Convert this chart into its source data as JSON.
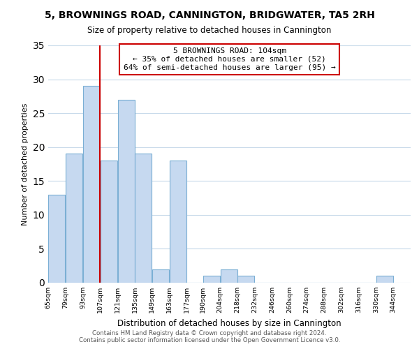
{
  "title": "5, BROWNINGS ROAD, CANNINGTON, BRIDGWATER, TA5 2RH",
  "subtitle": "Size of property relative to detached houses in Cannington",
  "xlabel": "Distribution of detached houses by size in Cannington",
  "ylabel": "Number of detached properties",
  "bar_left_edges": [
    65,
    79,
    93,
    107,
    121,
    135,
    149,
    163,
    177,
    190,
    204,
    218,
    232,
    246,
    260,
    274,
    288,
    302,
    316,
    330
  ],
  "bar_widths": [
    14,
    14,
    14,
    14,
    14,
    14,
    14,
    14,
    13,
    14,
    14,
    14,
    14,
    14,
    14,
    14,
    14,
    14,
    14,
    14
  ],
  "bar_heights": [
    13,
    19,
    29,
    18,
    27,
    19,
    2,
    18,
    0,
    1,
    2,
    1,
    0,
    0,
    0,
    0,
    0,
    0,
    0,
    1
  ],
  "bar_color": "#c6d9f0",
  "bar_edge_color": "#7bafd4",
  "tick_labels": [
    "65sqm",
    "79sqm",
    "93sqm",
    "107sqm",
    "121sqm",
    "135sqm",
    "149sqm",
    "163sqm",
    "177sqm",
    "190sqm",
    "204sqm",
    "218sqm",
    "232sqm",
    "246sqm",
    "260sqm",
    "274sqm",
    "288sqm",
    "302sqm",
    "316sqm",
    "330sqm",
    "344sqm"
  ],
  "property_line_x": 107,
  "property_line_color": "#cc0000",
  "annotation_text": "5 BROWNINGS ROAD: 104sqm\n← 35% of detached houses are smaller (52)\n64% of semi-detached houses are larger (95) →",
  "annotation_box_color": "#ffffff",
  "annotation_box_edge": "#cc0000",
  "ylim": [
    0,
    35
  ],
  "yticks": [
    0,
    5,
    10,
    15,
    20,
    25,
    30,
    35
  ],
  "xlim_min": 65,
  "xlim_max": 358,
  "footer_line1": "Contains HM Land Registry data © Crown copyright and database right 2024.",
  "footer_line2": "Contains public sector information licensed under the Open Government Licence v3.0.",
  "background_color": "#ffffff",
  "grid_color": "#c8daea"
}
